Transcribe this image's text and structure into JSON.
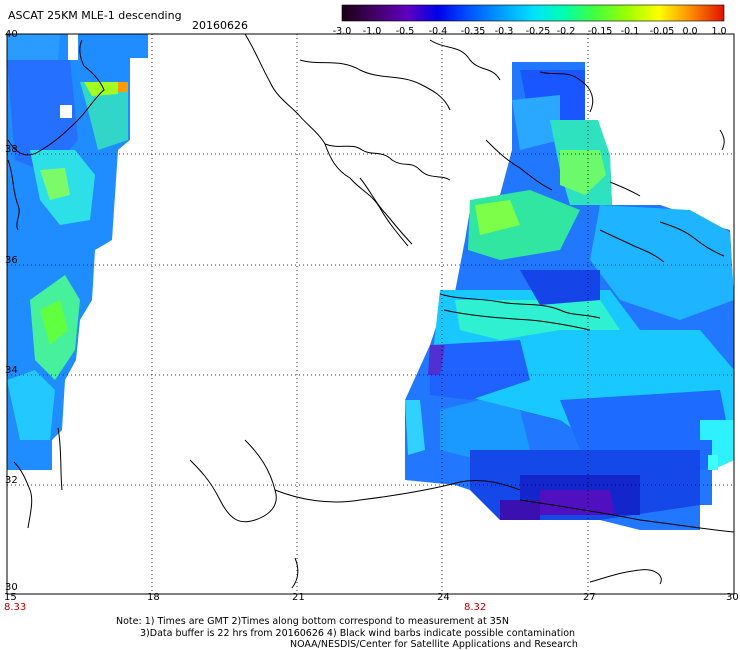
{
  "header": {
    "title": "ASCAT 25KM MLE-1 descending",
    "date": "20160626"
  },
  "colorbar": {
    "labels": [
      "-3.0",
      "-1.0",
      "-0.5",
      "-0.4",
      "-0.35",
      "-0.3",
      "-0.25",
      "-0.2",
      "-0.15",
      "-0.1",
      "-0.05",
      "0.0",
      "1.0"
    ]
  },
  "axes": {
    "lat_labels": [
      "40",
      "38",
      "36",
      "34",
      "32",
      "30"
    ],
    "lon_labels": [
      "15",
      "18",
      "21",
      "24",
      "27",
      "30"
    ],
    "time_labels": [
      "8.33",
      "8.32"
    ]
  },
  "footer": {
    "line1": "Note: 1) Times are GMT 2)Times along bottom correspond to measurement at 35N",
    "line2": "3)Data buffer is 22 hrs from 20160626 4) Black wind barbs indicate possible contamination",
    "line3": "NOAA/NESDIS/Center for Satellite Applications and Research"
  },
  "colors": {
    "frame": "#000000",
    "time_label": "#c00000"
  }
}
